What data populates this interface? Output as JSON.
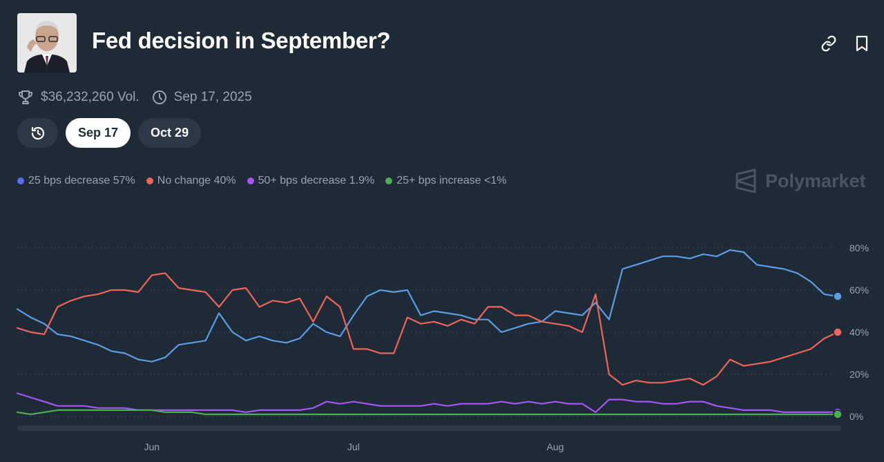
{
  "market": {
    "title": "Fed decision in September?",
    "volume": "$36,232,260 Vol.",
    "end_date": "Sep 17, 2025"
  },
  "icons": {
    "link": "link-icon",
    "bookmark": "bookmark-icon",
    "trophy": "trophy-icon",
    "clock": "clock-icon",
    "history": "history-icon",
    "brand": "polymarket-logo"
  },
  "tabs": [
    {
      "label": "Sep 17",
      "active": true
    },
    {
      "label": "Oct 29",
      "active": false
    }
  ],
  "brand": {
    "name": "Polymarket"
  },
  "legend": [
    {
      "label": "25 bps decrease 57%",
      "color": "#5b6cf0"
    },
    {
      "label": "No change 40%",
      "color": "#f0655a"
    },
    {
      "label": "50+ bps decrease 1.9%",
      "color": "#a855f7"
    },
    {
      "label": "25+ bps increase <1%",
      "color": "#4caf50"
    }
  ],
  "chart_data": {
    "type": "line",
    "x_ticks": [
      "Jun",
      "Jul",
      "Aug"
    ],
    "y_ticks": [
      "80%",
      "60%",
      "40%",
      "20%",
      "0%"
    ],
    "ylim": [
      0,
      80
    ],
    "grid": true,
    "x": [
      "May 13",
      "May 15",
      "May 17",
      "May 19",
      "May 21",
      "May 23",
      "May 25",
      "May 27",
      "May 29",
      "May 31",
      "Jun 2",
      "Jun 4",
      "Jun 6",
      "Jun 8",
      "Jun 10",
      "Jun 12",
      "Jun 14",
      "Jun 16",
      "Jun 18",
      "Jun 20",
      "Jun 22",
      "Jun 24",
      "Jun 26",
      "Jun 28",
      "Jun 30",
      "Jul 2",
      "Jul 4",
      "Jul 6",
      "Jul 8",
      "Jul 10",
      "Jul 12",
      "Jul 14",
      "Jul 16",
      "Jul 18",
      "Jul 20",
      "Jul 22",
      "Jul 24",
      "Jul 26",
      "Jul 28",
      "Jul 30",
      "Aug 1",
      "Aug 3",
      "Aug 5",
      "Aug 7",
      "Aug 9",
      "Aug 11",
      "Aug 13",
      "Aug 15",
      "Aug 17",
      "Aug 19",
      "Aug 21",
      "Aug 23",
      "Aug 25",
      "Aug 27",
      "Aug 29",
      "Aug 31",
      "Sep 2",
      "Sep 4",
      "Sep 6",
      "Sep 8",
      "Sep 10",
      "Sep 12"
    ],
    "series": [
      {
        "name": "25 bps decrease",
        "color": "#5b9ee6",
        "values": [
          51,
          47,
          44,
          39,
          38,
          36,
          34,
          31,
          30,
          27,
          26,
          28,
          34,
          35,
          36,
          49,
          40,
          36,
          38,
          36,
          35,
          37,
          44,
          40,
          38,
          48,
          57,
          60,
          59,
          60,
          48,
          50,
          49,
          48,
          46,
          46,
          40,
          42,
          44,
          45,
          50,
          49,
          48,
          54,
          46,
          70,
          72,
          74,
          76,
          76,
          75,
          77,
          76,
          79,
          78,
          72,
          71,
          70,
          68,
          64,
          58,
          57
        ],
        "marker": true
      },
      {
        "name": "No change",
        "color": "#f0655a",
        "values": [
          42,
          40,
          39,
          52,
          55,
          57,
          58,
          60,
          60,
          59,
          67,
          68,
          61,
          60,
          59,
          52,
          60,
          61,
          52,
          55,
          54,
          56,
          45,
          57,
          52,
          32,
          32,
          30,
          30,
          47,
          44,
          45,
          43,
          46,
          44,
          52,
          52,
          48,
          48,
          45,
          44,
          43,
          40,
          58,
          20,
          15,
          17,
          16,
          16,
          17,
          18,
          15,
          19,
          27,
          24,
          25,
          26,
          28,
          30,
          32,
          37,
          40
        ],
        "marker": true
      },
      {
        "name": "50+ bps decrease",
        "color": "#a855f7",
        "values": [
          11,
          9,
          7,
          5,
          5,
          5,
          4,
          4,
          4,
          3,
          3,
          3,
          3,
          3,
          3,
          3,
          3,
          2,
          3,
          3,
          3,
          3,
          4,
          7,
          6,
          7,
          6,
          5,
          5,
          5,
          5,
          6,
          5,
          6,
          6,
          6,
          7,
          6,
          7,
          6,
          7,
          6,
          6,
          2,
          8,
          8,
          7,
          7,
          6,
          6,
          7,
          7,
          5,
          4,
          3,
          3,
          3,
          2,
          2,
          2,
          2,
          2
        ],
        "marker": true
      },
      {
        "name": "25+ bps increase",
        "color": "#4caf50",
        "values": [
          2,
          1,
          2,
          3,
          3,
          3,
          3,
          3,
          3,
          3,
          3,
          2,
          2,
          2,
          1,
          1,
          1,
          1,
          1,
          1,
          1,
          1,
          1,
          1,
          1,
          1,
          1,
          1,
          1,
          1,
          1,
          1,
          1,
          1,
          1,
          1,
          1,
          1,
          1,
          1,
          1,
          1,
          1,
          1,
          1,
          1,
          1,
          1,
          1,
          1,
          1,
          1,
          1,
          1,
          1,
          1,
          1,
          1,
          1,
          1,
          1,
          1
        ],
        "marker": true
      }
    ]
  }
}
